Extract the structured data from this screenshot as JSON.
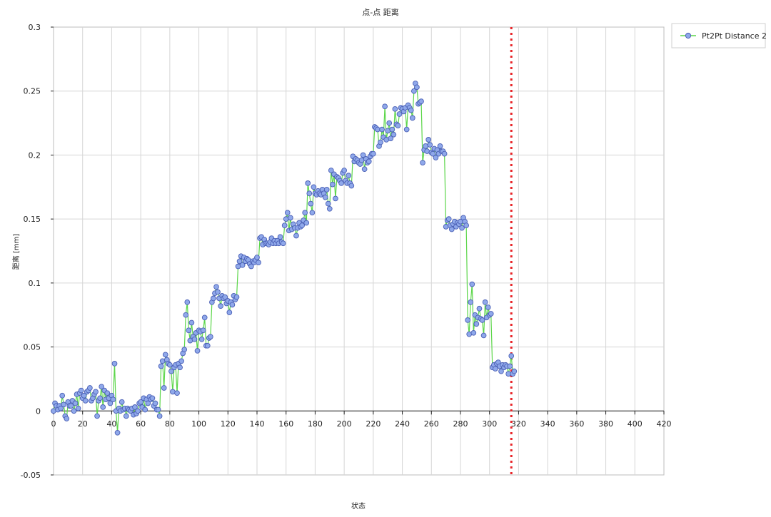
{
  "chart_data": {
    "type": "line",
    "title": "点-点 距离",
    "xlabel": "状态",
    "ylabel": "距离 [mm]",
    "xlim": [
      0,
      420
    ],
    "ylim": [
      -0.05,
      0.3
    ],
    "x_ticks": [
      "0",
      "20",
      "40",
      "60",
      "80",
      "100",
      "120",
      "140",
      "160",
      "180",
      "200",
      "220",
      "240",
      "260",
      "280",
      "300",
      "320",
      "340",
      "360",
      "380",
      "400",
      "420"
    ],
    "y_ticks": [
      "0.3",
      "0.25",
      "0.2",
      "0.15",
      "0.1",
      "0.05",
      "0",
      "-0.05"
    ],
    "grid": true,
    "legend_position": "top-right",
    "reference_line": {
      "x": 315,
      "color": "#e8262a",
      "style": "dotted"
    },
    "series": [
      {
        "name": "Pt2Pt Distance 2",
        "line_color": "#5cd64a",
        "marker_color": "#8fa8ea",
        "marker_edge": "#4a5fb5",
        "x_start": 0,
        "values": [
          0.0,
          0.006,
          0.004,
          0.001,
          0.004,
          0.002,
          0.012,
          0.005,
          -0.004,
          -0.006,
          0.007,
          0.004,
          0.004,
          0.008,
          0.0,
          0.006,
          0.013,
          0.002,
          0.014,
          0.016,
          0.01,
          0.012,
          0.008,
          0.015,
          0.016,
          0.018,
          0.008,
          0.01,
          0.013,
          0.015,
          -0.004,
          0.008,
          0.01,
          0.019,
          0.003,
          0.016,
          0.009,
          0.014,
          0.01,
          0.006,
          0.012,
          0.009,
          0.037,
          0.0,
          -0.017,
          0.002,
          0.0,
          0.007,
          0.001,
          0.002,
          -0.004,
          0.002,
          0.001,
          0.0,
          0.002,
          -0.003,
          0.003,
          -0.002,
          0.0,
          0.006,
          0.007,
          0.003,
          0.01,
          0.001,
          0.009,
          0.006,
          0.011,
          0.009,
          0.01,
          0.004,
          0.006,
          0.001,
          0.001,
          -0.004,
          0.035,
          0.039,
          0.018,
          0.044,
          0.04,
          0.037,
          0.036,
          0.031,
          0.015,
          0.034,
          0.036,
          0.014,
          0.037,
          0.034,
          0.039,
          0.045,
          0.048,
          0.075,
          0.085,
          0.063,
          0.055,
          0.069,
          0.058,
          0.056,
          0.061,
          0.047,
          0.063,
          0.062,
          0.056,
          0.063,
          0.073,
          0.051,
          0.051,
          0.057,
          0.058,
          0.085,
          0.088,
          0.092,
          0.097,
          0.093,
          0.088,
          0.082,
          0.09,
          0.088,
          0.089,
          0.084,
          0.086,
          0.077,
          0.085,
          0.083,
          0.09,
          0.087,
          0.089,
          0.113,
          0.117,
          0.121,
          0.114,
          0.12,
          0.117,
          0.119,
          0.118,
          0.115,
          0.113,
          0.117,
          0.116,
          0.118,
          0.12,
          0.116,
          0.135,
          0.136,
          0.13,
          0.134,
          0.131,
          0.131,
          0.13,
          0.132,
          0.135,
          0.131,
          0.133,
          0.131,
          0.133,
          0.131,
          0.136,
          0.132,
          0.131,
          0.145,
          0.15,
          0.155,
          0.141,
          0.151,
          0.142,
          0.146,
          0.143,
          0.137,
          0.143,
          0.147,
          0.144,
          0.145,
          0.149,
          0.155,
          0.147,
          0.178,
          0.17,
          0.162,
          0.155,
          0.175,
          0.17,
          0.169,
          0.172,
          0.17,
          0.169,
          0.173,
          0.17,
          0.167,
          0.173,
          0.162,
          0.158,
          0.188,
          0.177,
          0.185,
          0.166,
          0.183,
          0.182,
          0.18,
          0.178,
          0.186,
          0.188,
          0.18,
          0.178,
          0.184,
          0.178,
          0.176,
          0.199,
          0.195,
          0.197,
          0.196,
          0.194,
          0.193,
          0.196,
          0.2,
          0.189,
          0.197,
          0.194,
          0.195,
          0.199,
          0.201,
          0.201,
          0.222,
          0.221,
          0.22,
          0.207,
          0.21,
          0.22,
          0.214,
          0.238,
          0.212,
          0.219,
          0.225,
          0.213,
          0.22,
          0.216,
          0.236,
          0.224,
          0.223,
          0.232,
          0.237,
          0.236,
          0.234,
          0.237,
          0.22,
          0.239,
          0.237,
          0.235,
          0.229,
          0.25,
          0.256,
          0.253,
          0.24,
          0.241,
          0.242,
          0.194,
          0.204,
          0.207,
          0.203,
          0.212,
          0.208,
          0.202,
          0.201,
          0.205,
          0.198,
          0.204,
          0.201,
          0.207,
          0.203,
          0.203,
          0.201,
          0.144,
          0.149,
          0.15,
          0.145,
          0.142,
          0.146,
          0.148,
          0.144,
          0.147,
          0.146,
          0.148,
          0.143,
          0.151,
          0.148,
          0.145,
          0.071,
          0.06,
          0.085,
          0.099,
          0.061,
          0.075,
          0.068,
          0.073,
          0.08,
          0.072,
          0.071,
          0.059,
          0.085,
          0.073,
          0.081,
          0.075,
          0.076,
          0.034,
          0.036,
          0.033,
          0.037,
          0.038,
          0.035,
          0.031,
          0.036,
          0.034,
          0.036,
          0.035,
          0.029,
          0.035,
          0.043,
          0.029,
          0.031
        ]
      }
    ]
  }
}
